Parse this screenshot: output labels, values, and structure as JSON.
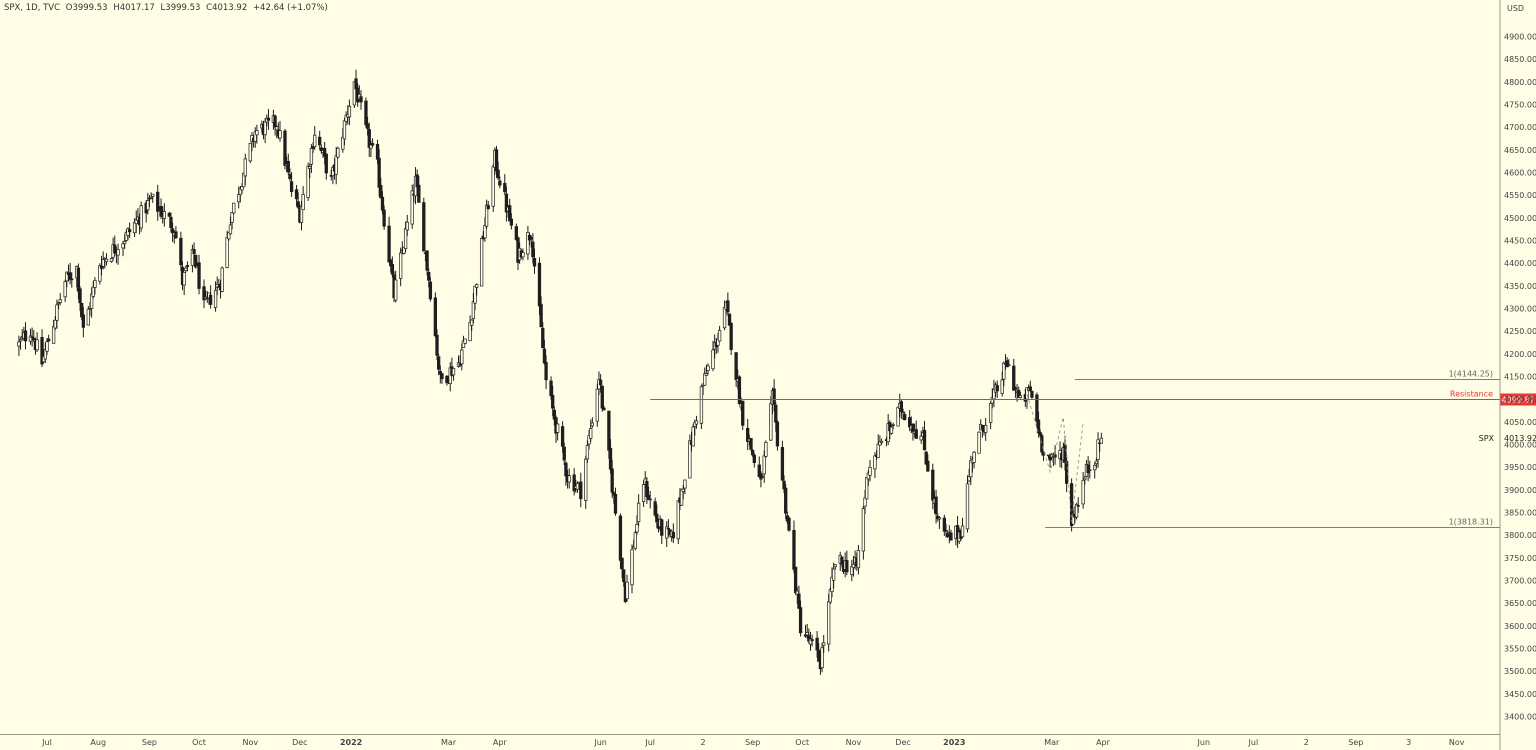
{
  "legend": {
    "symbol": "SPX, 1D, TVC",
    "open": "O3999.53",
    "high": "H4017.17",
    "low": "L3999.53",
    "close": "C4013.92",
    "change": "+42.64 (+1.07%)"
  },
  "currency": "USD",
  "colors": {
    "background": "#fffde5",
    "candle": "#1e1e1e",
    "resistance": "#e53935",
    "fib_line": "#555555",
    "axis_text": "#444444"
  },
  "chart_data": {
    "type": "candlestick",
    "symbol": "SPX",
    "interval": "1D",
    "source": "TVC",
    "ylim": [
      3380,
      4950
    ],
    "y_ticks": [
      "4900.00",
      "4850.00",
      "4800.00",
      "4750.00",
      "4700.00",
      "4650.00",
      "4600.00",
      "4550.00",
      "4500.00",
      "4450.00",
      "4400.00",
      "4350.00",
      "4300.00",
      "4250.00",
      "4200.00",
      "4150.00",
      "4100.00",
      "4050.00",
      "4000.00",
      "3950.00",
      "3900.00",
      "3850.00",
      "3800.00",
      "3750.00",
      "3700.00",
      "3650.00",
      "3600.00",
      "3550.00",
      "3500.00",
      "3450.00",
      "3400.00"
    ],
    "x_ticks": [
      {
        "label": "Jul",
        "date": "2021-07-01"
      },
      {
        "label": "Aug",
        "date": "2021-08-01"
      },
      {
        "label": "Sep",
        "date": "2021-09-01"
      },
      {
        "label": "Oct",
        "date": "2021-10-01"
      },
      {
        "label": "Nov",
        "date": "2021-11-01"
      },
      {
        "label": "Dec",
        "date": "2021-12-01"
      },
      {
        "label": "2022",
        "date": "2022-01-01"
      },
      {
        "label": "Mar",
        "date": "2022-03-01"
      },
      {
        "label": "Apr",
        "date": "2022-04-01"
      },
      {
        "label": "Jun",
        "date": "2022-06-01"
      },
      {
        "label": "Jul",
        "date": "2022-07-01"
      },
      {
        "label": "2",
        "date": "2022-08-02"
      },
      {
        "label": "Sep",
        "date": "2022-09-01"
      },
      {
        "label": "Oct",
        "date": "2022-10-01"
      },
      {
        "label": "Nov",
        "date": "2022-11-01"
      },
      {
        "label": "Dec",
        "date": "2022-12-01"
      },
      {
        "label": "2023",
        "date": "2023-01-01"
      },
      {
        "label": "Mar",
        "date": "2023-03-01"
      },
      {
        "label": "Apr",
        "date": "2023-04-01"
      },
      {
        "label": "Jun",
        "date": "2023-06-01"
      },
      {
        "label": "Jul",
        "date": "2023-07-01"
      },
      {
        "label": "2",
        "date": "2023-08-02"
      },
      {
        "label": "Sep",
        "date": "2023-09-01"
      },
      {
        "label": "3",
        "date": "2023-10-03"
      },
      {
        "label": "Nov",
        "date": "2023-11-01"
      }
    ],
    "price_path": [
      [
        "2021-06-14",
        4220
      ],
      [
        "2021-06-21",
        4255
      ],
      [
        "2021-06-28",
        4180
      ],
      [
        "2021-07-12",
        4360
      ],
      [
        "2021-07-19",
        4390
      ],
      [
        "2021-07-23",
        4250
      ],
      [
        "2021-08-02",
        4400
      ],
      [
        "2021-08-18",
        4460
      ],
      [
        "2021-09-02",
        4540
      ],
      [
        "2021-09-16",
        4480
      ],
      [
        "2021-09-21",
        4360
      ],
      [
        "2021-09-28",
        4420
      ],
      [
        "2021-10-04",
        4300
      ],
      [
        "2021-10-14",
        4360
      ],
      [
        "2021-10-20",
        4500
      ],
      [
        "2021-11-04",
        4690
      ],
      [
        "2021-11-17",
        4710
      ],
      [
        "2021-11-26",
        4560
      ],
      [
        "2021-12-01",
        4510
      ],
      [
        "2021-12-10",
        4690
      ],
      [
        "2021-12-20",
        4580
      ],
      [
        "2022-01-03",
        4800
      ],
      [
        "2022-01-10",
        4690
      ],
      [
        "2022-01-17",
        4610
      ],
      [
        "2022-01-27",
        4330
      ],
      [
        "2022-02-09",
        4580
      ],
      [
        "2022-02-18",
        4340
      ],
      [
        "2022-02-24",
        4140
      ],
      [
        "2022-03-07",
        4180
      ],
      [
        "2022-03-14",
        4270
      ],
      [
        "2022-03-29",
        4630
      ],
      [
        "2022-04-12",
        4420
      ],
      [
        "2022-04-20",
        4470
      ],
      [
        "2022-04-29",
        4140
      ],
      [
        "2022-05-12",
        3930
      ],
      [
        "2022-05-20",
        3900
      ],
      [
        "2022-05-31",
        4150
      ],
      [
        "2022-06-16",
        3670
      ],
      [
        "2022-06-27",
        3920
      ],
      [
        "2022-07-06",
        3820
      ],
      [
        "2022-07-14",
        3790
      ],
      [
        "2022-08-01",
        4120
      ],
      [
        "2022-08-16",
        4300
      ],
      [
        "2022-08-26",
        4060
      ],
      [
        "2022-09-06",
        3910
      ],
      [
        "2022-09-13",
        4100
      ],
      [
        "2022-09-30",
        3600
      ],
      [
        "2022-10-12",
        3520
      ],
      [
        "2022-10-21",
        3740
      ],
      [
        "2022-11-03",
        3730
      ],
      [
        "2022-11-10",
        3950
      ],
      [
        "2022-11-30",
        4080
      ],
      [
        "2022-12-13",
        4010
      ],
      [
        "2022-12-22",
        3830
      ],
      [
        "2022-12-28",
        3790
      ],
      [
        "2023-01-05",
        3810
      ],
      [
        "2023-01-12",
        3980
      ],
      [
        "2023-02-02",
        4180
      ],
      [
        "2023-02-10",
        4090
      ],
      [
        "2023-02-16",
        4120
      ],
      [
        "2023-02-23",
        4000
      ],
      [
        "2023-03-01",
        3960
      ],
      [
        "2023-03-08",
        3990
      ],
      [
        "2023-03-13",
        3830
      ],
      [
        "2023-03-22",
        3940
      ],
      [
        "2023-03-28",
        3980
      ],
      [
        "2023-03-31",
        4013.92
      ]
    ],
    "horizontal_levels": [
      {
        "name": "Resistance",
        "value": 4099.87,
        "label": "Resistance",
        "tag": "4099.87",
        "from": "2022-07-01"
      },
      {
        "name": "fib-1-upper",
        "value": 4144.25,
        "label": "1(4144.25)",
        "from": "2023-03-15"
      },
      {
        "name": "fib-1-lower",
        "value": 3818.31,
        "label": "1(3818.31)",
        "from": "2023-02-25"
      }
    ],
    "last_price": {
      "symbol": "SPX",
      "value": "4013.92",
      "numeric": 4013.92
    },
    "grid": false
  }
}
